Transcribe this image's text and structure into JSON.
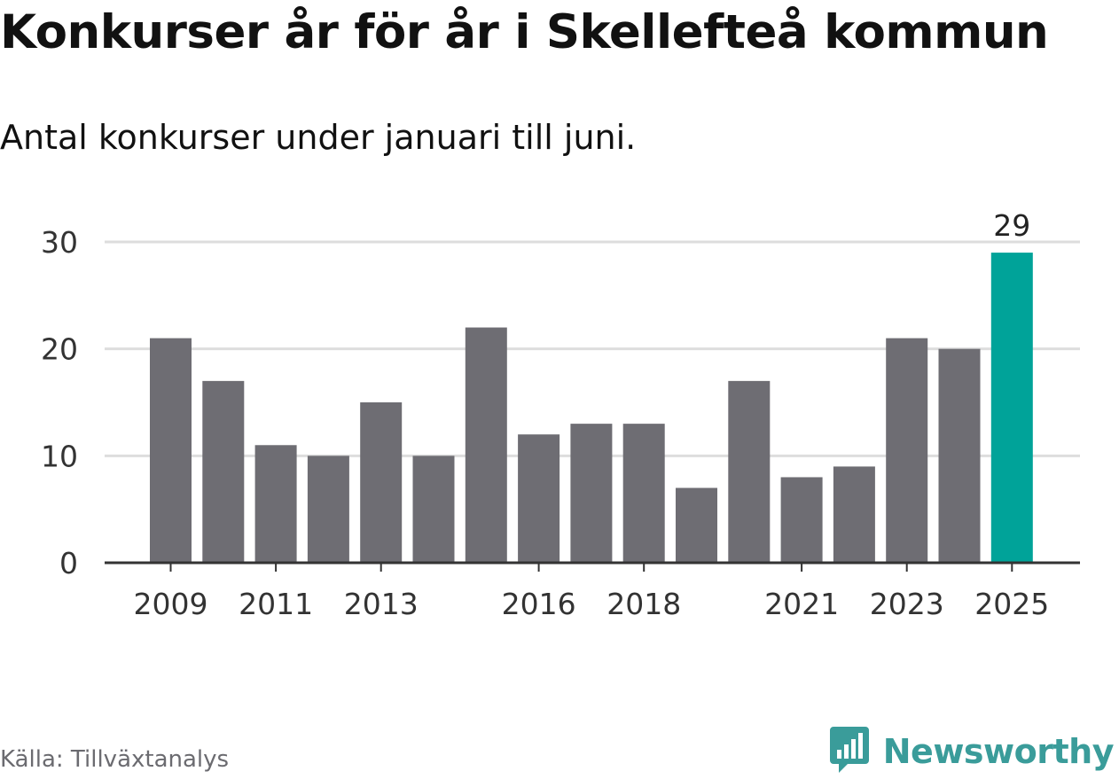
{
  "title": "Konkurser år för år i Skellefteå kommun",
  "subtitle": "Antal konkurser under januari till juni.",
  "source": "Källa: Tillväxtanalys",
  "brand": "Newsworthy",
  "colors": {
    "bar": "#6e6d73",
    "highlight": "#00a399",
    "grid": "#dddddd",
    "axis": "#333333",
    "brand": "#3a9c9a"
  },
  "chart_data": {
    "type": "bar",
    "categories": [
      "2009",
      "2010",
      "2011",
      "2012",
      "2013",
      "2014",
      "2015",
      "2016",
      "2017",
      "2018",
      "2019",
      "2020",
      "2021",
      "2022",
      "2023",
      "2024",
      "2025"
    ],
    "values": [
      21,
      17,
      11,
      10,
      15,
      10,
      22,
      12,
      13,
      13,
      7,
      17,
      8,
      9,
      21,
      20,
      29
    ],
    "x_tick_labels": [
      "2009",
      "2011",
      "2013",
      "2016",
      "2018",
      "2021",
      "2023",
      "2025"
    ],
    "y_ticks": [
      0,
      10,
      20,
      30
    ],
    "ylim": [
      0,
      30
    ],
    "highlight": {
      "category": "2025",
      "label": "29"
    },
    "grid": true,
    "xlabel": "",
    "ylabel": ""
  }
}
